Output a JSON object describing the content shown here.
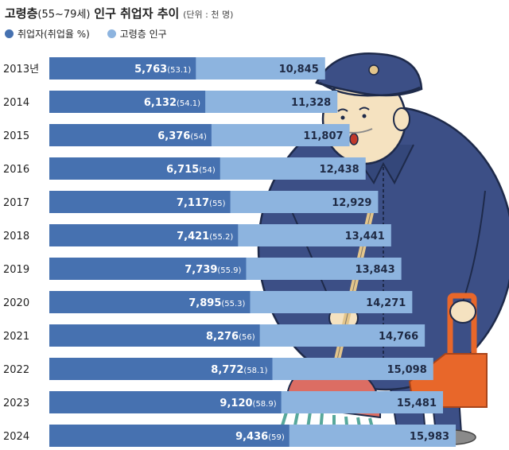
{
  "header": {
    "title": "고령층",
    "range": "(55~79세)",
    "subtitle": "인구 취업자 추이",
    "unit": "(단위 : 천 명)"
  },
  "legend": {
    "employed": "취업자(취업율 %)",
    "population": "고령층 인구"
  },
  "colors": {
    "employed": "#4671b0",
    "population": "#8db4df",
    "figure_coat": "#3c4f86",
    "figure_outline": "#1e2a4a",
    "skin": "#f5e2c0",
    "dustpan": "#e8672a",
    "broom_head": "#dc6d63",
    "broom_handle": "#e3c58b",
    "bristles": "#57a89b"
  },
  "chart_data": {
    "type": "bar",
    "categories": [
      "2013년",
      "2014",
      "2015",
      "2016",
      "2017",
      "2018",
      "2019",
      "2020",
      "2021",
      "2022",
      "2023",
      "2024"
    ],
    "series": [
      {
        "name": "취업자(취업율 %)",
        "values": [
          5763,
          6132,
          6376,
          6715,
          7117,
          7421,
          7739,
          7895,
          8276,
          8772,
          9120,
          9436
        ],
        "labels": [
          "5,763",
          "6,132",
          "6,376",
          "6,715",
          "7,117",
          "7,421",
          "7,739",
          "7,895",
          "8,276",
          "8,772",
          "9,120",
          "9,436"
        ],
        "rates": [
          "(53.1)",
          "(54.1)",
          "(54)",
          "(54)",
          "(55)",
          "(55.2)",
          "(55.9)",
          "(55.3)",
          "(56)",
          "(58.1)",
          "(58.9)",
          "(59)"
        ]
      },
      {
        "name": "고령층 인구",
        "values": [
          10845,
          11328,
          11807,
          12438,
          12929,
          13441,
          13843,
          14271,
          14766,
          15098,
          15481,
          15983
        ],
        "labels": [
          "10,845",
          "11,328",
          "11,807",
          "12,438",
          "12,929",
          "13,441",
          "13,843",
          "14,271",
          "14,766",
          "15,098",
          "15,481",
          "15,983"
        ]
      }
    ],
    "orientation": "horizontal",
    "xlim": [
      0,
      17200
    ]
  }
}
